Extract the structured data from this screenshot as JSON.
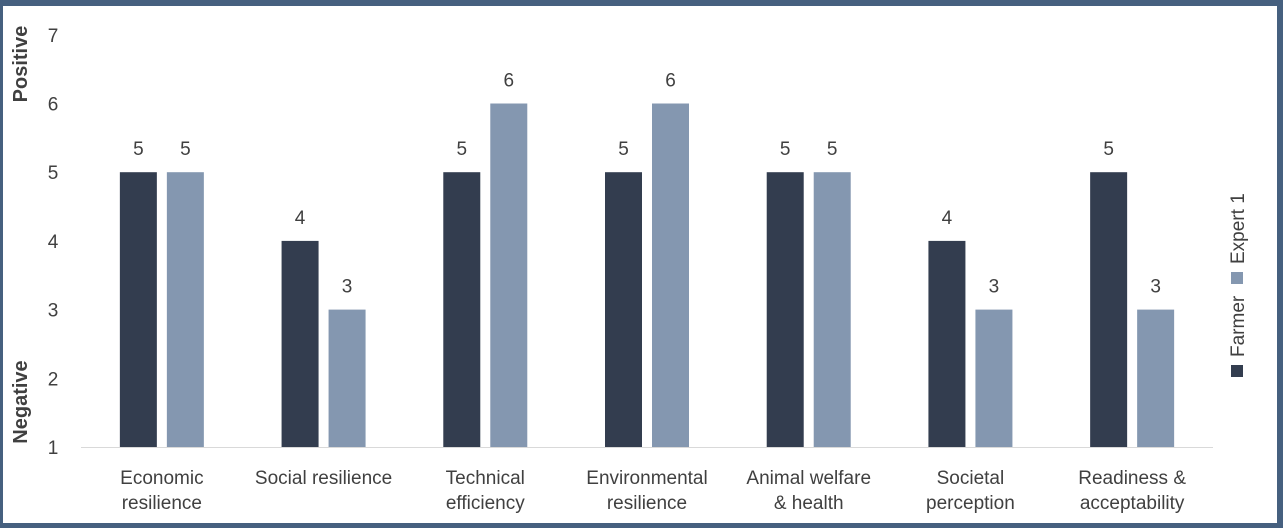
{
  "chart_data": {
    "type": "bar",
    "categories": [
      [
        "Economic",
        "resilience"
      ],
      [
        "Social resilience"
      ],
      [
        "Technical",
        "efficiency"
      ],
      [
        "Environmental",
        "resilience"
      ],
      [
        "Animal welfare",
        "& health"
      ],
      [
        "Societal",
        "perception"
      ],
      [
        "Readiness &",
        "acceptability"
      ]
    ],
    "series": [
      {
        "name": "Farmer",
        "color": "#333d4f",
        "values": [
          5,
          4,
          5,
          5,
          5,
          4,
          5
        ]
      },
      {
        "name": "Expert 1",
        "color": "#8497b0",
        "values": [
          5,
          3,
          6,
          6,
          5,
          3,
          3
        ]
      }
    ],
    "ylim": [
      1,
      7
    ],
    "yticks": [
      1,
      2,
      3,
      4,
      5,
      6,
      7
    ],
    "y_annotations": {
      "top": "Positive",
      "bottom": "Negative"
    },
    "legend_position": "right (vertical)",
    "grid": false,
    "data_labels": true
  }
}
